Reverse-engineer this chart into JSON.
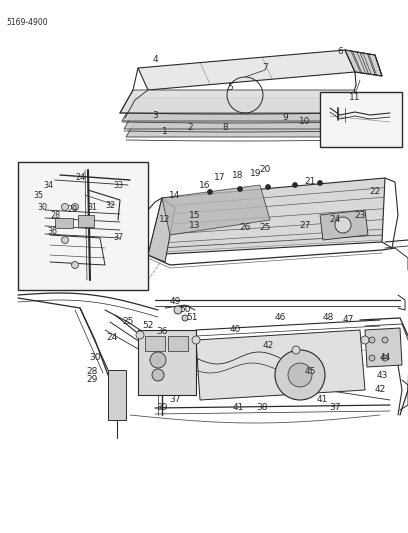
{
  "part_number": "5169-4900",
  "bg": "#ffffff",
  "fg": "#2a2a2a",
  "fig_w": 4.08,
  "fig_h": 5.33,
  "dpi": 100,
  "top_labels": [
    [
      "4",
      155,
      60
    ],
    [
      "5",
      230,
      88
    ],
    [
      "6",
      340,
      52
    ],
    [
      "7",
      265,
      68
    ],
    [
      "1",
      165,
      132
    ],
    [
      "2",
      190,
      128
    ],
    [
      "3",
      155,
      115
    ],
    [
      "8",
      225,
      128
    ],
    [
      "9",
      285,
      118
    ],
    [
      "10",
      305,
      122
    ]
  ],
  "inset_tr_label": [
    "11",
    362,
    108
  ],
  "mid_labels": [
    [
      "20",
      265,
      170
    ],
    [
      "21",
      310,
      182
    ],
    [
      "22",
      375,
      192
    ],
    [
      "17",
      220,
      178
    ],
    [
      "18",
      238,
      176
    ],
    [
      "19",
      256,
      174
    ],
    [
      "16",
      205,
      185
    ],
    [
      "14",
      175,
      195
    ],
    [
      "13",
      195,
      225
    ],
    [
      "15",
      195,
      215
    ],
    [
      "12",
      165,
      220
    ],
    [
      "23",
      360,
      215
    ],
    [
      "24",
      335,
      220
    ],
    [
      "25",
      265,
      228
    ],
    [
      "26",
      245,
      228
    ],
    [
      "27",
      305,
      225
    ]
  ],
  "inset_l_labels": [
    [
      "24",
      80,
      178
    ],
    [
      "33",
      118,
      185
    ],
    [
      "34",
      48,
      185
    ],
    [
      "35",
      38,
      195
    ],
    [
      "32",
      110,
      205
    ],
    [
      "31",
      92,
      208
    ],
    [
      "29",
      72,
      210
    ],
    [
      "30",
      42,
      208
    ],
    [
      "28",
      55,
      215
    ],
    [
      "36",
      52,
      232
    ],
    [
      "37",
      118,
      238
    ]
  ],
  "bot_labels": [
    [
      "49",
      175,
      302
    ],
    [
      "50",
      185,
      310
    ],
    [
      "51",
      192,
      318
    ],
    [
      "25",
      128,
      322
    ],
    [
      "52",
      148,
      325
    ],
    [
      "36",
      162,
      332
    ],
    [
      "24",
      112,
      338
    ],
    [
      "30",
      95,
      358
    ],
    [
      "28",
      92,
      372
    ],
    [
      "29",
      92,
      380
    ],
    [
      "37",
      175,
      400
    ],
    [
      "39",
      162,
      408
    ],
    [
      "40",
      235,
      330
    ],
    [
      "42",
      268,
      345
    ],
    [
      "46",
      280,
      318
    ],
    [
      "48",
      328,
      318
    ],
    [
      "47",
      348,
      320
    ],
    [
      "45",
      310,
      372
    ],
    [
      "38",
      262,
      408
    ],
    [
      "41",
      238,
      408
    ],
    [
      "41",
      322,
      400
    ],
    [
      "37",
      335,
      408
    ],
    [
      "44",
      385,
      358
    ],
    [
      "43",
      382,
      375
    ],
    [
      "42",
      380,
      390
    ]
  ]
}
